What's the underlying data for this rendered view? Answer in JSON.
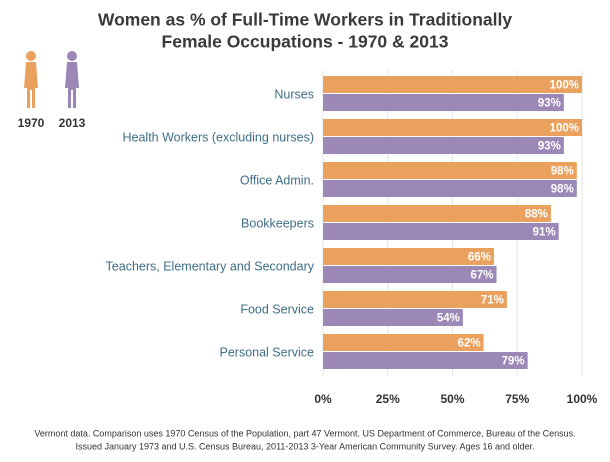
{
  "chart_data": {
    "type": "bar",
    "orientation": "horizontal",
    "title": [
      "Women as % of Full-Time Workers in Traditionally",
      "Female Occupations - 1970 & 2013"
    ],
    "categories": [
      "Nurses",
      "Health Workers (excluding nurses)",
      "Office Admin.",
      "Bookkeepers",
      "Teachers, Elementary and Secondary",
      "Food Service",
      "Personal Service"
    ],
    "series": [
      {
        "name": "1970",
        "color": "#eba15e",
        "values": [
          100,
          100,
          98,
          88,
          66,
          71,
          62
        ],
        "value_labels": [
          "100%",
          "100%",
          "98%",
          "88%",
          "66%",
          "71%",
          "62%"
        ]
      },
      {
        "name": "2013",
        "color": "#9b88b7",
        "values": [
          93,
          93,
          98,
          91,
          67,
          54,
          79
        ],
        "value_labels": [
          "93%",
          "93%",
          "98%",
          "91%",
          "67%",
          "54%",
          "79%"
        ]
      }
    ],
    "xlim": [
      0,
      100
    ],
    "xticks": [
      {
        "value": 0,
        "label": "0%"
      },
      {
        "value": 25,
        "label": "25%"
      },
      {
        "value": 50,
        "label": "50%"
      },
      {
        "value": 75,
        "label": "75%"
      },
      {
        "value": 100,
        "label": "100%"
      }
    ],
    "grid": true,
    "note": [
      "Vermont data. Comparison uses 1970 Census of the Population, part 47 Vermont. US Department of Commerce, Bureau of the Census.",
      "Issued January 1973 and U.S. Census Bureau, 2011-2013 3-Year American Community Survey. Ages 16 and older."
    ]
  }
}
